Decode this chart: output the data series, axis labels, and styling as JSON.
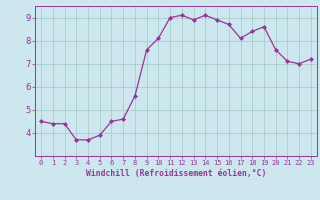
{
  "x": [
    0,
    1,
    2,
    3,
    4,
    5,
    6,
    7,
    8,
    9,
    10,
    11,
    12,
    13,
    14,
    15,
    16,
    17,
    18,
    19,
    20,
    21,
    22,
    23
  ],
  "y": [
    4.5,
    4.4,
    4.4,
    3.7,
    3.7,
    3.9,
    4.5,
    4.6,
    5.6,
    7.6,
    8.1,
    9.0,
    9.1,
    8.9,
    9.1,
    8.9,
    8.7,
    8.1,
    8.4,
    8.6,
    7.6,
    7.1,
    7.0,
    7.2
  ],
  "xlim": [
    -0.5,
    23.5
  ],
  "ylim": [
    3.0,
    9.5
  ],
  "yticks": [
    4,
    5,
    6,
    7,
    8,
    9
  ],
  "xticks": [
    0,
    1,
    2,
    3,
    4,
    5,
    6,
    7,
    8,
    9,
    10,
    11,
    12,
    13,
    14,
    15,
    16,
    17,
    18,
    19,
    20,
    21,
    22,
    23
  ],
  "xlabel": "Windchill (Refroidissement éolien,°C)",
  "line_color": "#993399",
  "marker": "D",
  "marker_size": 2.0,
  "bg_color": "#cce8ee",
  "grid_color": "#aacccc",
  "axis_color": "#993399",
  "tick_color": "#993399",
  "label_color": "#993399"
}
